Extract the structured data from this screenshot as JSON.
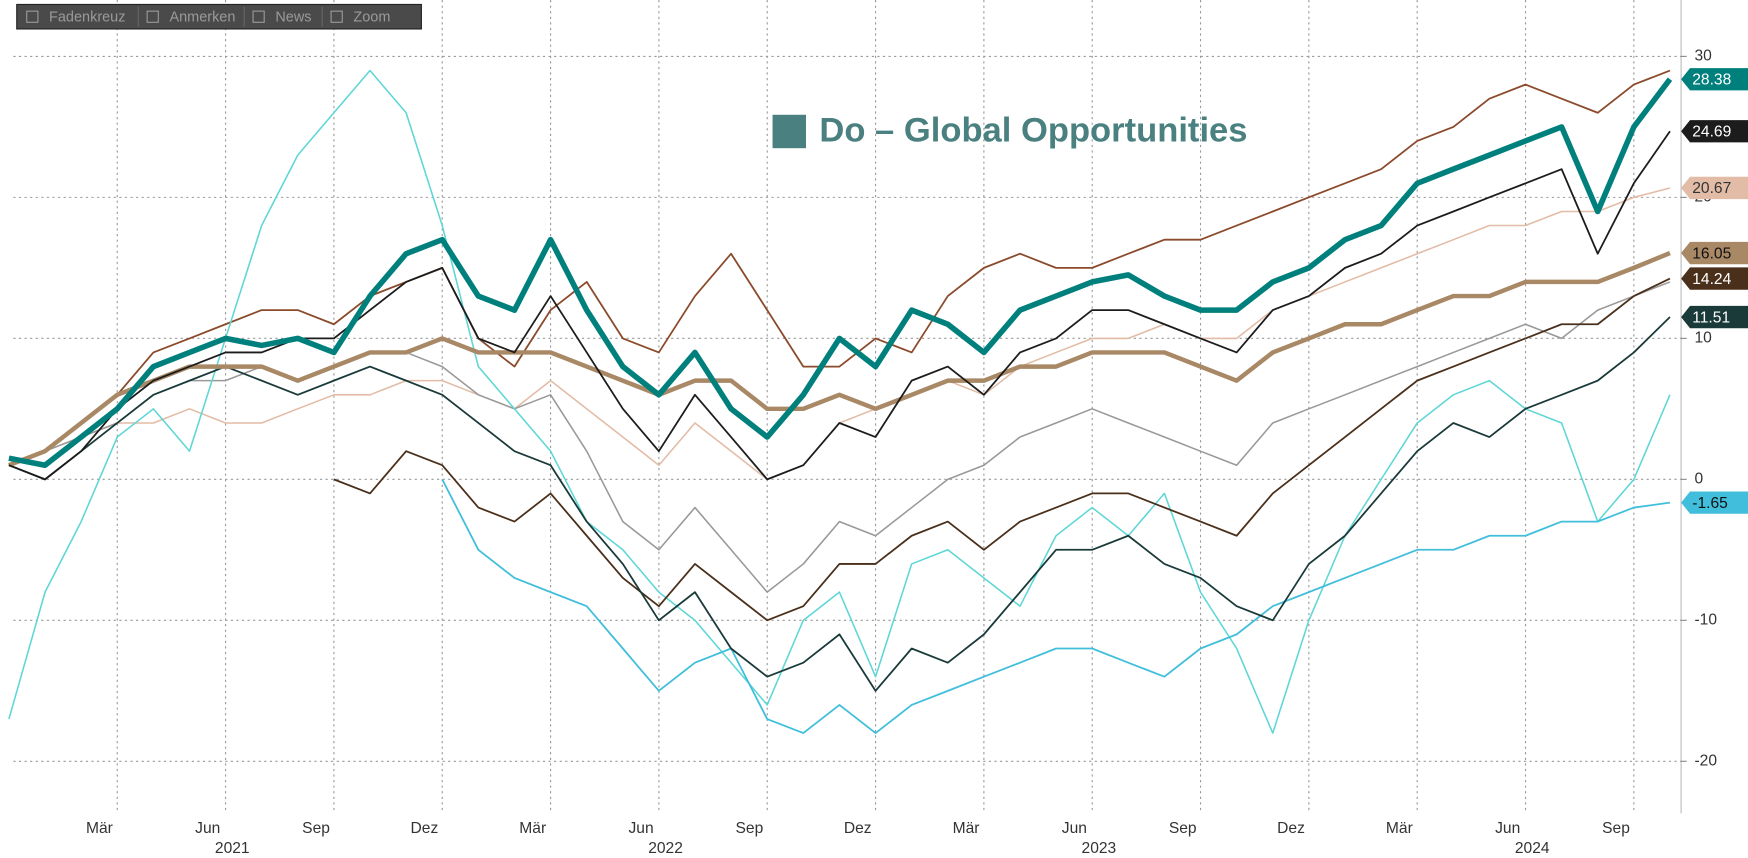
{
  "toolbar": [
    "Fadenkreuz",
    "Anmerken",
    "News",
    "Zoom"
  ],
  "chart_data": {
    "type": "line",
    "title": "Do – Global Opportunities",
    "x": [
      "2020-12",
      "2021-01",
      "2021-02",
      "2021-03",
      "2021-04",
      "2021-05",
      "2021-06",
      "2021-07",
      "2021-08",
      "2021-09",
      "2021-10",
      "2021-11",
      "2021-12",
      "2022-01",
      "2022-02",
      "2022-03",
      "2022-04",
      "2022-05",
      "2022-06",
      "2022-07",
      "2022-08",
      "2022-09",
      "2022-10",
      "2022-11",
      "2022-12",
      "2023-01",
      "2023-02",
      "2023-03",
      "2023-04",
      "2023-05",
      "2023-06",
      "2023-07",
      "2023-08",
      "2023-09",
      "2023-10",
      "2023-11",
      "2023-12",
      "2024-01",
      "2024-02",
      "2024-03",
      "2024-04",
      "2024-05",
      "2024-06",
      "2024-07",
      "2024-08",
      "2024-09",
      "2024-10"
    ],
    "xlim": [
      "2020-12",
      "2024-10"
    ],
    "xticks": [
      {
        "value": "2021-03",
        "label": "Mär"
      },
      {
        "value": "2021-06",
        "label": "Jun"
      },
      {
        "value": "2021-09",
        "label": "Sep"
      },
      {
        "value": "2021-12",
        "label": "Dez"
      },
      {
        "value": "2022-03",
        "label": "Mär"
      },
      {
        "value": "2022-06",
        "label": "Jun"
      },
      {
        "value": "2022-09",
        "label": "Sep"
      },
      {
        "value": "2022-12",
        "label": "Dez"
      },
      {
        "value": "2023-03",
        "label": "Mär"
      },
      {
        "value": "2023-06",
        "label": "Jun"
      },
      {
        "value": "2023-09",
        "label": "Sep"
      },
      {
        "value": "2023-12",
        "label": "Dez"
      },
      {
        "value": "2024-03",
        "label": "Mär"
      },
      {
        "value": "2024-06",
        "label": "Jun"
      },
      {
        "value": "2024-09",
        "label": "Sep"
      }
    ],
    "xtick_years": [
      {
        "value": "2021-06",
        "label": "2021"
      },
      {
        "value": "2022-06",
        "label": "2022"
      },
      {
        "value": "2023-06",
        "label": "2023"
      },
      {
        "value": "2024-06",
        "label": "2024"
      }
    ],
    "ylim": [
      -23.5,
      34
    ],
    "yticks": [
      -20,
      -10,
      0,
      10,
      20,
      30
    ],
    "grid": true,
    "series": [
      {
        "color": "#8b4a2b",
        "width": 1.6,
        "values": [
          1,
          2,
          4,
          6,
          9,
          10,
          11,
          12,
          12,
          11,
          13,
          14,
          15,
          10,
          8,
          12,
          14,
          10,
          9,
          13,
          16,
          12,
          8,
          8,
          10,
          9,
          13,
          15,
          16,
          15,
          15,
          16,
          17,
          17,
          18,
          19,
          20,
          21,
          22,
          24,
          25,
          27,
          28,
          27,
          26,
          28,
          29
        ]
      },
      {
        "color": "#e2bca6",
        "width": 1.4,
        "end_label": true,
        "label_text": "#333",
        "values": [
          1,
          2,
          3,
          4,
          4,
          5,
          4,
          4,
          5,
          6,
          6,
          7,
          7,
          6,
          5,
          7,
          5,
          3,
          1,
          4,
          2,
          0,
          1,
          4,
          5,
          6,
          7,
          6,
          8,
          9,
          10,
          10,
          11,
          10,
          10,
          12,
          13,
          14,
          15,
          16,
          17,
          18,
          18,
          19,
          19,
          20,
          20.67
        ]
      },
      {
        "color": "#999999",
        "width": 1.4,
        "values": [
          1,
          2,
          3,
          4,
          6,
          7,
          7,
          8,
          7,
          8,
          9,
          9,
          8,
          6,
          5,
          6,
          2,
          -3,
          -5,
          -2,
          -5,
          -8,
          -6,
          -3,
          -4,
          -2,
          0,
          1,
          3,
          4,
          5,
          4,
          3,
          2,
          1,
          4,
          5,
          6,
          7,
          8,
          9,
          10,
          11,
          10,
          12,
          13,
          14
        ]
      },
      {
        "color": "#5fd6d6",
        "width": 1.4,
        "values": [
          -17,
          -8,
          -3,
          3,
          5,
          2,
          10,
          18,
          23,
          26,
          29,
          26,
          18,
          8,
          5,
          2,
          -3,
          -5,
          -8,
          -10,
          -13,
          -16,
          -10,
          -8,
          -14,
          -6,
          -5,
          -7,
          -9,
          -4,
          -2,
          -4,
          -1,
          -8,
          -12,
          -18,
          -10,
          -4,
          0,
          4,
          6,
          7,
          5,
          4,
          -3,
          0,
          6
        ]
      },
      {
        "color": "#40bedc",
        "width": 1.6,
        "end_label": true,
        "label_text": "#111",
        "values": [
          null,
          null,
          null,
          null,
          null,
          null,
          null,
          null,
          null,
          null,
          null,
          null,
          0,
          -5,
          -7,
          -8,
          -9,
          -12,
          -15,
          -13,
          -12,
          -17,
          -18,
          -16,
          -18,
          -16,
          -15,
          -14,
          -13,
          -12,
          -12,
          -13,
          -14,
          -12,
          -11,
          -9,
          -8,
          -7,
          -6,
          -5,
          -5,
          -4,
          -4,
          -3,
          -3,
          -2,
          -1.65
        ]
      },
      {
        "color": "#4a2f1a",
        "width": 1.6,
        "end_label": true,
        "label_text": "#fff",
        "values": [
          null,
          null,
          null,
          null,
          null,
          null,
          null,
          null,
          null,
          0,
          -1,
          2,
          1,
          -2,
          -3,
          -1,
          -4,
          -7,
          -9,
          -6,
          -8,
          -10,
          -9,
          -6,
          -6,
          -4,
          -3,
          -5,
          -3,
          -2,
          -1,
          -1,
          -2,
          -3,
          -4,
          -1,
          1,
          3,
          5,
          7,
          8,
          9,
          10,
          11,
          11,
          13,
          14.24
        ]
      },
      {
        "color": "#1a3a3a",
        "width": 1.6,
        "end_label": true,
        "label_text": "#fff",
        "values": [
          1,
          0,
          2,
          4,
          6,
          7,
          8,
          7,
          6,
          7,
          8,
          7,
          6,
          4,
          2,
          1,
          -3,
          -6,
          -10,
          -8,
          -12,
          -14,
          -13,
          -11,
          -15,
          -12,
          -13,
          -11,
          -8,
          -5,
          -5,
          -4,
          -6,
          -7,
          -9,
          -10,
          -6,
          -4,
          -1,
          2,
          4,
          3,
          5,
          6,
          7,
          9,
          11.51
        ]
      },
      {
        "color": "#a88865",
        "width": 4,
        "end_label": true,
        "label_text": "#111",
        "values": [
          1,
          2,
          4,
          6,
          7,
          8,
          8,
          8,
          7,
          8,
          9,
          9,
          10,
          9,
          9,
          9,
          8,
          7,
          6,
          7,
          7,
          5,
          5,
          6,
          5,
          6,
          7,
          7,
          8,
          8,
          9,
          9,
          9,
          8,
          7,
          9,
          10,
          11,
          11,
          12,
          13,
          13,
          14,
          14,
          14,
          15,
          16.05
        ]
      },
      {
        "color": "#1c1c1c",
        "width": 1.6,
        "end_label": true,
        "label_text": "#fff",
        "values": [
          1,
          0,
          2,
          5,
          7,
          8,
          9,
          9,
          10,
          10,
          12,
          14,
          15,
          10,
          9,
          13,
          9,
          5,
          2,
          6,
          3,
          0,
          1,
          4,
          3,
          7,
          8,
          6,
          9,
          10,
          12,
          12,
          11,
          10,
          9,
          12,
          13,
          15,
          16,
          18,
          19,
          20,
          21,
          22,
          16,
          21,
          24.69
        ]
      },
      {
        "name": "Do – Global Opportunities",
        "color": "#00807d",
        "width": 5,
        "end_label": true,
        "label_text": "#fff",
        "values": [
          1.5,
          1,
          3,
          5,
          8,
          9,
          10,
          9.5,
          10,
          9,
          13,
          16,
          17,
          13,
          12,
          17,
          12,
          8,
          6,
          9,
          5,
          3,
          6,
          10,
          8,
          12,
          11,
          9,
          12,
          13,
          14,
          14.5,
          13,
          12,
          12,
          14,
          15,
          17,
          18,
          21,
          22,
          23,
          24,
          25,
          19,
          25,
          28.38
        ]
      }
    ]
  }
}
